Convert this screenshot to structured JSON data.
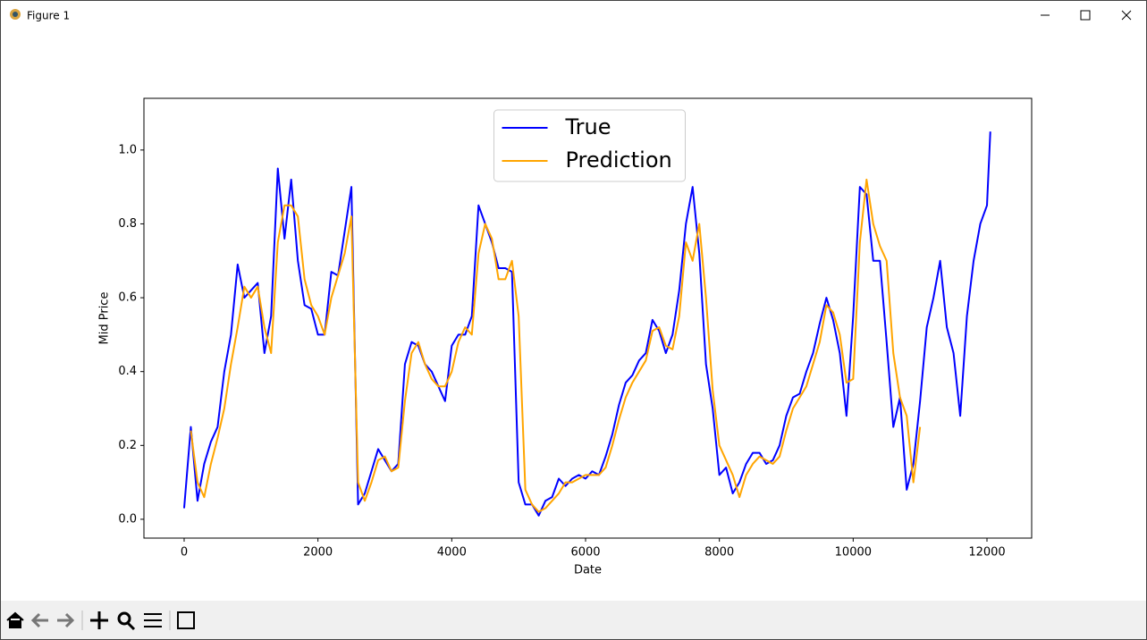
{
  "window": {
    "title": "Figure 1"
  },
  "chart_data": {
    "type": "line",
    "xlabel": "Date",
    "ylabel": "Mid Price",
    "x": [
      0,
      100,
      200,
      300,
      400,
      500,
      600,
      700,
      800,
      900,
      1000,
      1100,
      1200,
      1300,
      1400,
      1500,
      1600,
      1700,
      1800,
      1900,
      2000,
      2100,
      2200,
      2300,
      2400,
      2500,
      2600,
      2700,
      2800,
      2900,
      3000,
      3100,
      3200,
      3300,
      3400,
      3500,
      3600,
      3700,
      3800,
      3900,
      4000,
      4100,
      4200,
      4300,
      4400,
      4500,
      4600,
      4700,
      4800,
      4900,
      5000,
      5100,
      5200,
      5300,
      5400,
      5500,
      5600,
      5700,
      5800,
      5900,
      6000,
      6100,
      6200,
      6300,
      6400,
      6500,
      6600,
      6700,
      6800,
      6900,
      7000,
      7100,
      7200,
      7300,
      7400,
      7500,
      7600,
      7700,
      7800,
      7900,
      8000,
      8100,
      8200,
      8300,
      8400,
      8500,
      8600,
      8700,
      8800,
      8900,
      9000,
      9100,
      9200,
      9300,
      9400,
      9500,
      9600,
      9700,
      9800,
      9900,
      10000,
      10100,
      10200,
      10300,
      10400,
      10500,
      10600,
      10700,
      10800,
      10900,
      11000,
      11100,
      11200,
      11300,
      11400,
      11500,
      11600,
      11700,
      11800,
      11900,
      12000,
      12050
    ],
    "series": [
      {
        "name": "True",
        "color": "#0000ff",
        "values": [
          0.03,
          0.25,
          0.05,
          0.15,
          0.21,
          0.25,
          0.4,
          0.5,
          0.69,
          0.6,
          0.62,
          0.64,
          0.45,
          0.55,
          0.95,
          0.76,
          0.92,
          0.7,
          0.58,
          0.57,
          0.5,
          0.5,
          0.67,
          0.66,
          0.78,
          0.9,
          0.04,
          0.07,
          0.13,
          0.19,
          0.16,
          0.13,
          0.15,
          0.42,
          0.48,
          0.47,
          0.42,
          0.4,
          0.36,
          0.32,
          0.47,
          0.5,
          0.5,
          0.55,
          0.85,
          0.8,
          0.75,
          0.68,
          0.68,
          0.67,
          0.1,
          0.04,
          0.04,
          0.01,
          0.05,
          0.06,
          0.11,
          0.09,
          0.11,
          0.12,
          0.11,
          0.13,
          0.12,
          0.17,
          0.23,
          0.31,
          0.37,
          0.39,
          0.43,
          0.45,
          0.54,
          0.51,
          0.45,
          0.5,
          0.62,
          0.8,
          0.9,
          0.72,
          0.42,
          0.3,
          0.12,
          0.14,
          0.07,
          0.1,
          0.15,
          0.18,
          0.18,
          0.15,
          0.16,
          0.2,
          0.28,
          0.33,
          0.34,
          0.4,
          0.45,
          0.53,
          0.6,
          0.54,
          0.45,
          0.28,
          0.55,
          0.9,
          0.88,
          0.7,
          0.7,
          0.48,
          0.25,
          0.33,
          0.08,
          0.15,
          0.32,
          0.52,
          0.6,
          0.7,
          0.52,
          0.45,
          0.28,
          0.55,
          0.7,
          0.8,
          0.85,
          1.05
        ]
      },
      {
        "name": "Prediction",
        "color": "#ffa500",
        "values": [
          null,
          0.24,
          0.1,
          0.06,
          0.15,
          0.22,
          0.3,
          0.42,
          0.52,
          0.63,
          0.6,
          0.63,
          0.52,
          0.45,
          0.75,
          0.85,
          0.85,
          0.82,
          0.65,
          0.58,
          0.55,
          0.5,
          0.6,
          0.66,
          0.72,
          0.82,
          0.1,
          0.05,
          0.1,
          0.16,
          0.17,
          0.13,
          0.14,
          0.32,
          0.45,
          0.48,
          0.42,
          0.38,
          0.36,
          0.36,
          0.4,
          0.48,
          0.52,
          0.5,
          0.72,
          0.8,
          0.76,
          0.65,
          0.65,
          0.7,
          0.55,
          0.08,
          0.04,
          0.02,
          0.03,
          0.05,
          0.07,
          0.1,
          0.1,
          0.11,
          0.12,
          0.12,
          0.12,
          0.14,
          0.2,
          0.27,
          0.33,
          0.37,
          0.4,
          0.43,
          0.51,
          0.52,
          0.47,
          0.46,
          0.55,
          0.75,
          0.7,
          0.8,
          0.6,
          0.35,
          0.2,
          0.16,
          0.12,
          0.06,
          0.12,
          0.15,
          0.17,
          0.16,
          0.15,
          0.17,
          0.24,
          0.3,
          0.33,
          0.36,
          0.42,
          0.48,
          0.58,
          0.56,
          0.5,
          0.37,
          0.38,
          0.75,
          0.92,
          0.8,
          0.74,
          0.7,
          0.45,
          0.33,
          0.28,
          0.1,
          0.25,
          null,
          null,
          null,
          null,
          null,
          null,
          null,
          null,
          null,
          null,
          null
        ]
      }
    ],
    "xlim": [
      -601,
      12668
    ],
    "ylim": [
      -0.051,
      1.14
    ],
    "xticks": [
      0,
      2000,
      4000,
      6000,
      8000,
      10000,
      12000
    ],
    "yticks": [
      {
        "value": 0,
        "label": "0.0"
      },
      {
        "value": 0.2,
        "label": "0.2"
      },
      {
        "value": 0.4,
        "label": "0.4"
      },
      {
        "value": 0.6,
        "label": "0.6"
      },
      {
        "value": 0.8,
        "label": "0.8"
      },
      {
        "value": 1,
        "label": "1.0"
      }
    ],
    "legend": "upper center",
    "grid": false
  }
}
